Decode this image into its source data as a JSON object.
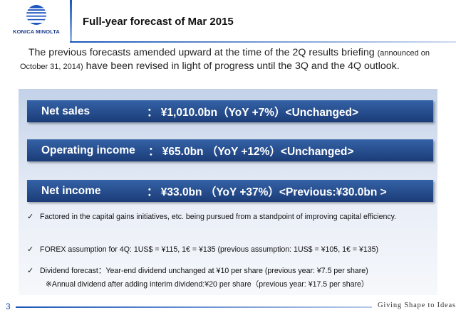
{
  "logo": {
    "name": "KONICA MINOLTA",
    "icon": "konica-minolta-globe-logo",
    "brand_color": "#1c3d8c"
  },
  "header": {
    "title": "Full-year forecast of Mar 2015"
  },
  "intro": {
    "text_a": "The previous forecasts amended upward at the time of the 2Q results briefing",
    "text_small": "(announced on October 31, 2014)",
    "text_b": "have been revised in light of progress until the 3Q and the 4Q outlook."
  },
  "bars": {
    "net_sales": {
      "label": "Net sales",
      "value": "：  ¥1,010.0bn（YoY   +7%）<Unchanged>"
    },
    "operating_income": {
      "label": "Operating income",
      "value": "：  ¥65.0bn     （YoY   +12%）<Unchanged>"
    },
    "net_income": {
      "label": "Net income",
      "value": "：  ¥33.0bn      （YoY   +37%）<Previous:¥30.0bn >"
    }
  },
  "notes": {
    "check_symbol": "✓",
    "capital": "Factored in the capital gains initiatives, etc. being pursued from a standpoint of improving capital efficiency.",
    "forex": "FOREX assumption for 4Q: 1US$ = ¥115, 1€ = ¥135 (previous assumption: 1US$ = ¥105, 1€ = ¥135)",
    "dividend": "Dividend forecast：Year-end dividend unchanged at ¥10 per share (previous year: ¥7.5 per share)",
    "annual": "※Annual dividend after adding interim dividend:¥20 per share（previous year: ¥17.5 per share）"
  },
  "footer": {
    "page_number": "3",
    "tagline": "Giving Shape to Ideas"
  },
  "colors": {
    "accent": "#1a56b8",
    "bar": "#1b3c78",
    "panel": "#d5e0f0"
  }
}
